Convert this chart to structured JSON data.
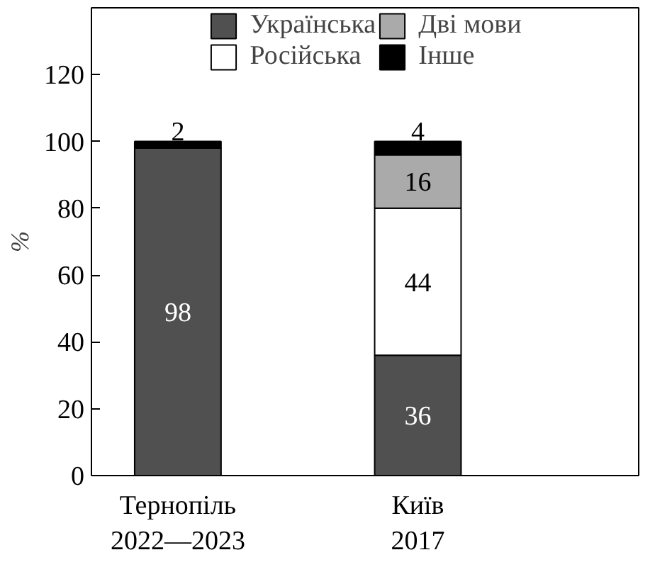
{
  "chart_data": {
    "type": "bar",
    "stacked": true,
    "ylabel": "%",
    "categories": [
      "Тернопіль\n2022—2023",
      "Київ\n2017"
    ],
    "series": [
      {
        "name": "Українська",
        "color": "#505050",
        "values": [
          98,
          36
        ],
        "value_labels": [
          "98",
          "36"
        ]
      },
      {
        "name": "Російська",
        "color": "#ffffff",
        "values": [
          0,
          44
        ],
        "value_labels": [
          null,
          "44"
        ]
      },
      {
        "name": "Дві мови",
        "color": "#aaaaaa",
        "values": [
          0,
          16
        ],
        "value_labels": [
          null,
          "16"
        ]
      },
      {
        "name": "Інше",
        "color": "#000000",
        "values": [
          2,
          4
        ],
        "value_labels": [
          "2",
          "4"
        ]
      }
    ],
    "ylim": [
      0,
      140
    ],
    "yticks": [
      0,
      20,
      40,
      60,
      80,
      100,
      120
    ],
    "grid": false,
    "legend": "top"
  }
}
